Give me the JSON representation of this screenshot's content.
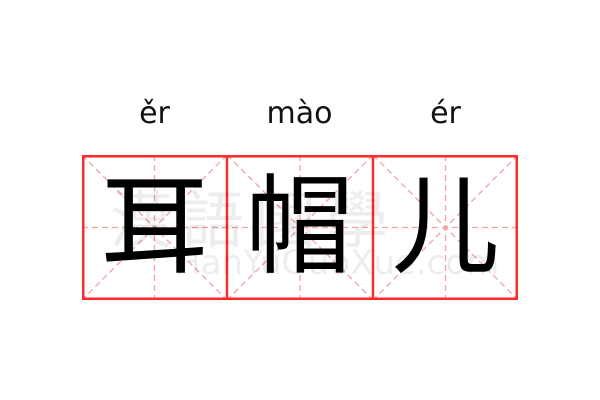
{
  "entries": [
    {
      "pinyin": "ěr",
      "hanzi": "耳"
    },
    {
      "pinyin": "mào",
      "hanzi": "帽"
    },
    {
      "pinyin": "ér",
      "hanzi": "儿"
    }
  ],
  "watermark": {
    "chinese": "漢語國學",
    "latin": "HanYuGuoXue.com"
  },
  "colors": {
    "border": "#ff2a2a",
    "guide": "#f5a0a0"
  }
}
